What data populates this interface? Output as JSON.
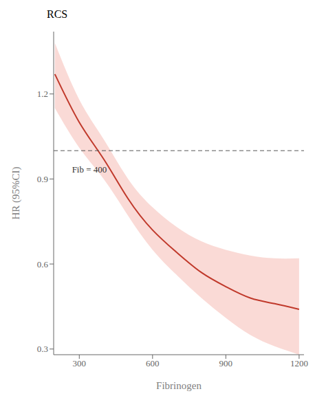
{
  "chart_data": {
    "type": "line",
    "title": "RCS",
    "xlabel": "Fibrinogen",
    "ylabel": "HR (95%CI)",
    "x": [
      200,
      300,
      400,
      500,
      600,
      700,
      800,
      900,
      1000,
      1100,
      1200
    ],
    "series": [
      {
        "type": "line",
        "color": "#c0392b",
        "values": [
          1.27,
          1.1,
          0.97,
          0.83,
          0.72,
          0.64,
          0.57,
          0.52,
          0.48,
          0.46,
          0.44
        ]
      },
      {
        "type": "band",
        "color": "#f1948a",
        "upper": [
          1.38,
          1.18,
          1.04,
          0.9,
          0.8,
          0.73,
          0.68,
          0.65,
          0.63,
          0.62,
          0.62
        ],
        "lower": [
          1.15,
          1.01,
          0.9,
          0.77,
          0.65,
          0.56,
          0.48,
          0.41,
          0.35,
          0.31,
          0.28
        ]
      }
    ],
    "reference_lines": [
      {
        "y": 1.0,
        "line_style": "dashed"
      }
    ],
    "annotations": [
      {
        "text": "Fib = 400",
        "x": 270,
        "y": 0.935
      }
    ],
    "xlim": [
      195,
      1220
    ],
    "ylim": [
      0.28,
      1.42
    ],
    "xticks": [
      300,
      600,
      900,
      1200
    ],
    "yticks": [
      0.3,
      0.6,
      0.9,
      1.2
    ],
    "grid": false
  }
}
